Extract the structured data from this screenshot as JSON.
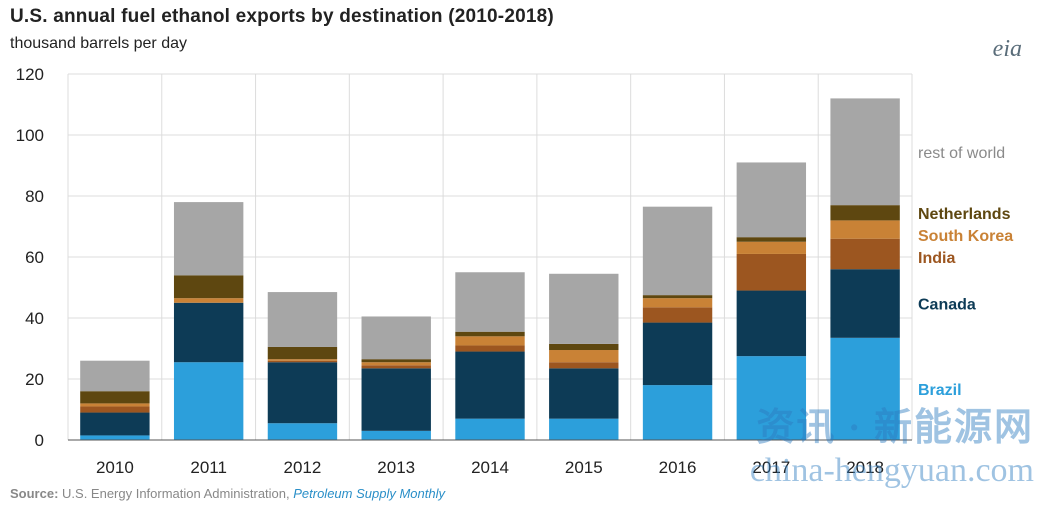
{
  "chart_data": {
    "type": "bar",
    "stacked": true,
    "title": "U.S. annual fuel ethanol exports by destination (2010-2018)",
    "subtitle": "thousand barrels per day",
    "categories": [
      "2010",
      "2011",
      "2012",
      "2013",
      "2014",
      "2015",
      "2016",
      "2017",
      "2018"
    ],
    "ylim": [
      0,
      120
    ],
    "yticks": [
      0,
      20,
      40,
      60,
      80,
      100,
      120
    ],
    "grid": true,
    "legend_position": "right",
    "series": [
      {
        "name": "Brazil",
        "color": "#2c9fdb",
        "values": [
          1.5,
          25.5,
          5.5,
          3,
          7,
          7,
          18,
          27.5,
          33.5
        ]
      },
      {
        "name": "Canada",
        "color": "#0d3b56",
        "values": [
          7.5,
          19.5,
          20,
          20.5,
          22,
          16.5,
          20.5,
          21.5,
          22.5
        ]
      },
      {
        "name": "India",
        "color": "#9c5620",
        "values": [
          2,
          0,
          0.5,
          1,
          2,
          2,
          5,
          12,
          10
        ]
      },
      {
        "name": "South Korea",
        "color": "#c98236",
        "values": [
          1,
          1.5,
          0.5,
          1,
          3,
          4,
          3,
          4,
          6
        ]
      },
      {
        "name": "Netherlands",
        "color": "#5e4710",
        "values": [
          4,
          7.5,
          4,
          1,
          1.5,
          2,
          1,
          1.5,
          5
        ]
      },
      {
        "name": "rest of world",
        "color": "#a6a6a6",
        "values": [
          10,
          24,
          18,
          14,
          19.5,
          23,
          29,
          24.5,
          35
        ]
      }
    ]
  },
  "source": {
    "label": "Source:",
    "text": " U.S. Energy Information Administration, ",
    "publication": "Petroleum Supply Monthly"
  },
  "logo": "eia",
  "watermark": {
    "cn": "资讯 · 新能源网",
    "en": "china-hengyuan.com"
  }
}
